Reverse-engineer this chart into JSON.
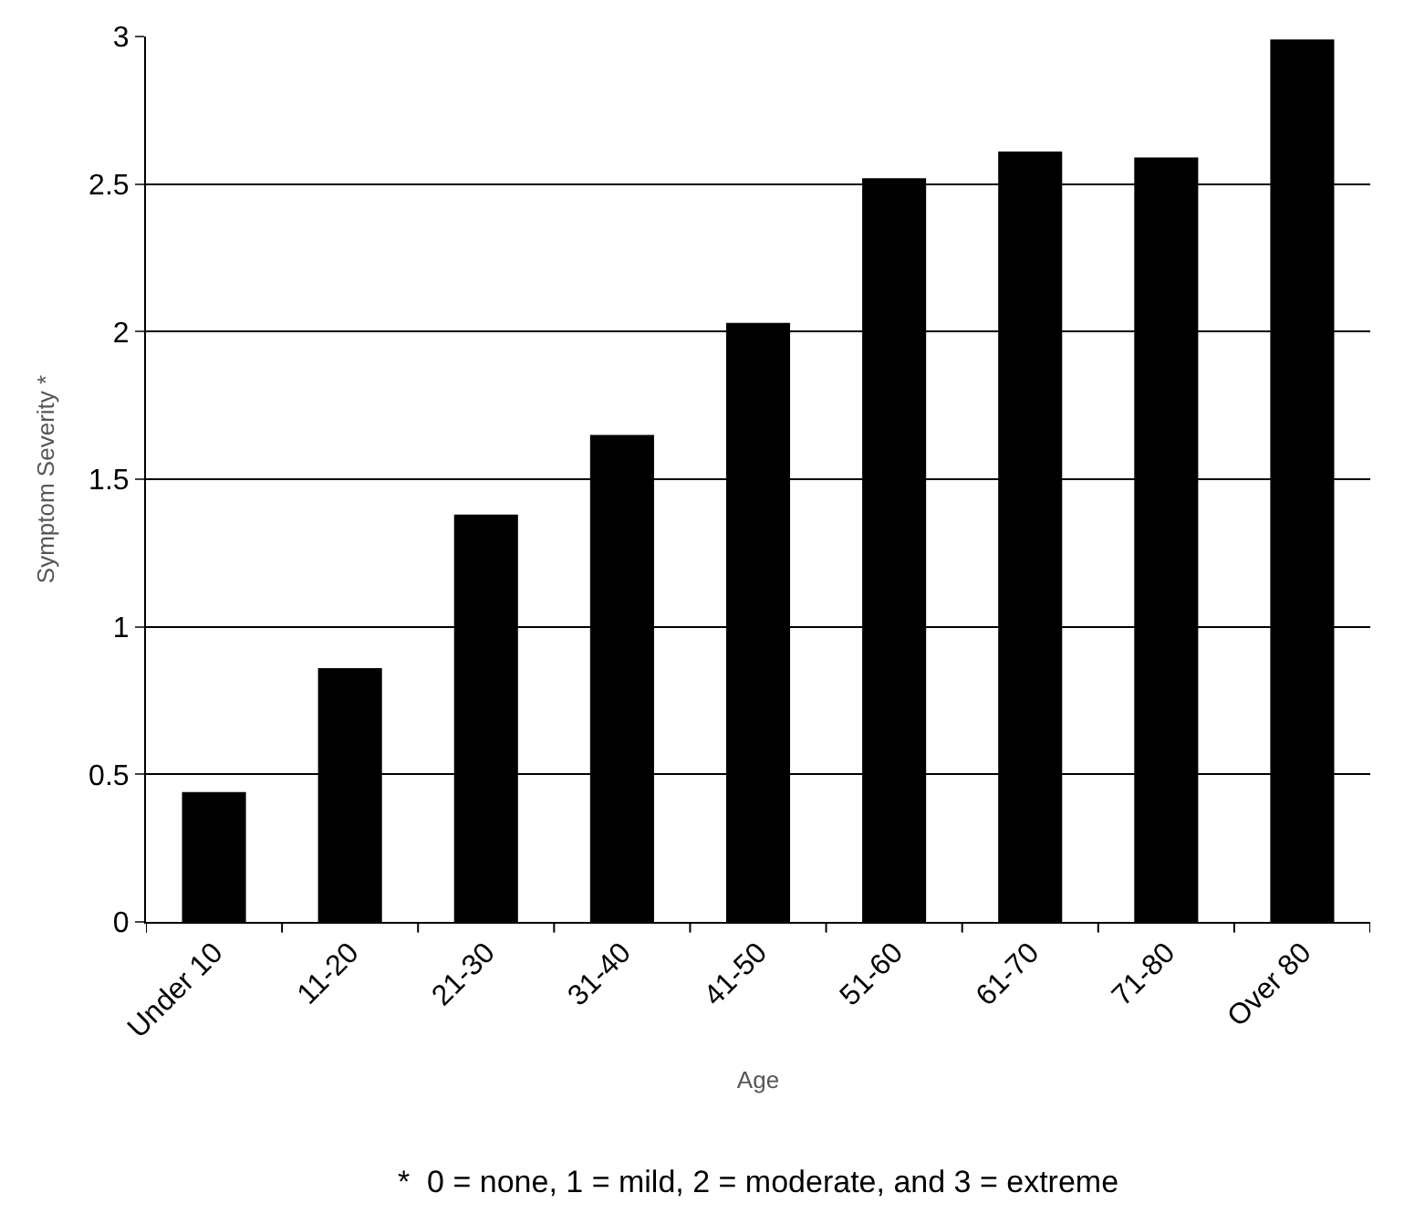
{
  "chart_data": {
    "type": "bar",
    "xlabel": "Age",
    "ylabel": "Symptom Severity *",
    "categories": [
      "Under 10",
      "11-20",
      "21-30",
      "31-40",
      "41-50",
      "51-60",
      "61-70",
      "71-80",
      "Over 80"
    ],
    "values": [
      0.44,
      0.86,
      1.38,
      1.65,
      2.03,
      2.52,
      2.61,
      2.59,
      2.99
    ],
    "color": "#000000",
    "ylim": [
      0,
      3
    ],
    "yticks": [
      0,
      0.5,
      1,
      1.5,
      2,
      2.5,
      3
    ],
    "grid": "y",
    "annotations": [
      "*  0 = none, 1 = mild, 2 = moderate, and 3 = extreme"
    ]
  }
}
